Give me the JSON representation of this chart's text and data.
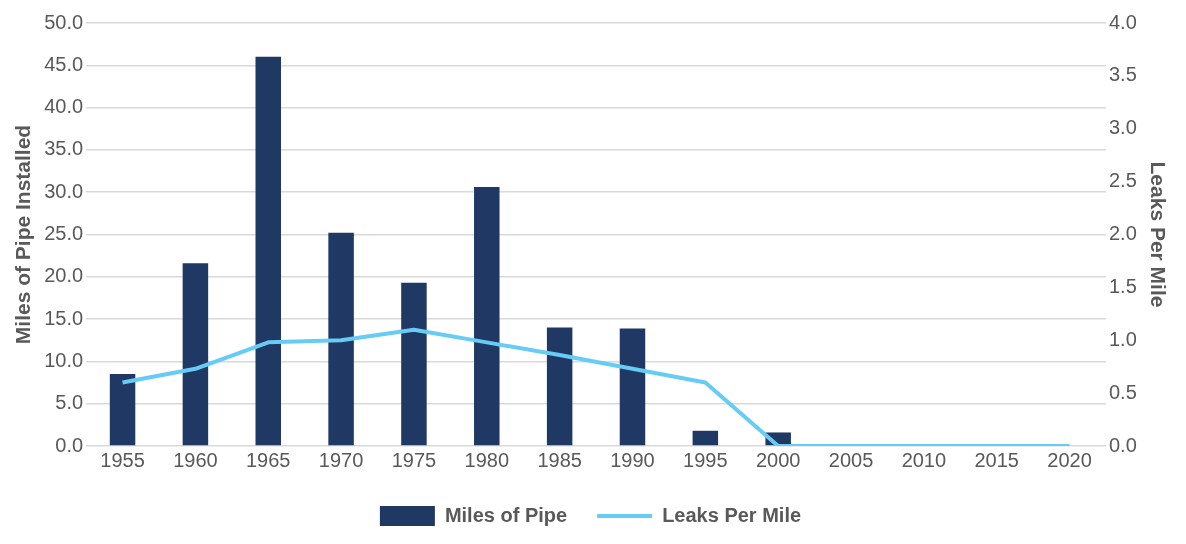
{
  "chart_data": {
    "type": "bar",
    "categories": [
      "1955",
      "1960",
      "1965",
      "1970",
      "1975",
      "1980",
      "1985",
      "1990",
      "1995",
      "2000",
      "2005",
      "2010",
      "2015",
      "2020"
    ],
    "series": [
      {
        "name": "Miles of Pipe",
        "color": "#203864",
        "values": [
          8.5,
          21.6,
          46.0,
          25.2,
          19.3,
          30.6,
          14.0,
          13.9,
          1.8,
          1.6,
          null,
          null,
          null,
          null
        ]
      },
      {
        "name": "Leaks Per Mile",
        "type": "line",
        "axis": "y2",
        "color": "#66ccf5",
        "values": [
          0.6,
          0.73,
          0.98,
          1.0,
          1.1,
          0.98,
          0.86,
          0.73,
          0.6,
          0,
          0,
          0,
          0,
          0
        ]
      }
    ],
    "ylabel": "Miles of Pipe Installed",
    "y2label": "Leaks Per Mile",
    "ylim": [
      0,
      50
    ],
    "yticks": [
      {
        "value": 0,
        "label": "0.0"
      },
      {
        "value": 5,
        "label": "5.0"
      },
      {
        "value": 10,
        "label": "10.0"
      },
      {
        "value": 15,
        "label": "15.0"
      },
      {
        "value": 20,
        "label": "20.0"
      },
      {
        "value": 25,
        "label": "25.0"
      },
      {
        "value": 30,
        "label": "30.0"
      },
      {
        "value": 35,
        "label": "35.0"
      },
      {
        "value": 40,
        "label": "40.0"
      },
      {
        "value": 45,
        "label": "45.0"
      },
      {
        "value": 50,
        "label": "50.0"
      }
    ],
    "y2lim": [
      0,
      4
    ],
    "y2ticks": [
      {
        "value": 0,
        "label": "0.0"
      },
      {
        "value": 0.5,
        "label": "0.5"
      },
      {
        "value": 1,
        "label": "1.0"
      },
      {
        "value": 1.5,
        "label": "1.5"
      },
      {
        "value": 2,
        "label": "2.0"
      },
      {
        "value": 2.5,
        "label": "2.5"
      },
      {
        "value": 3,
        "label": "3.0"
      },
      {
        "value": 3.5,
        "label": "3.5"
      },
      {
        "value": 4,
        "label": "4.0"
      }
    ],
    "grid": "y",
    "legend": "bottom",
    "marker": "none",
    "line_style": "solid"
  }
}
